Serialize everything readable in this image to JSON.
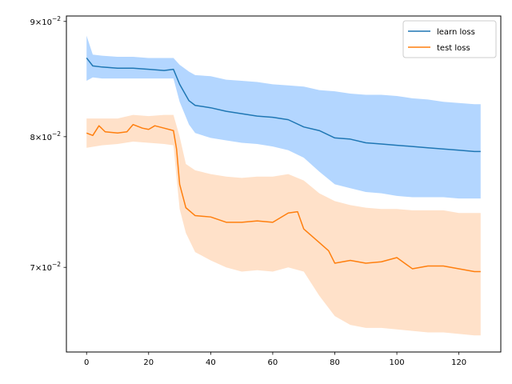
{
  "chart_data": {
    "type": "line",
    "title": "",
    "xlabel": "",
    "ylabel": "",
    "xlim": [
      -6.5,
      133.5
    ],
    "ylim": [
      0.0642,
      0.0905
    ],
    "yscale": "log",
    "grid": false,
    "legend_position": "top-right",
    "x_ticks": [
      0,
      20,
      40,
      60,
      80,
      100,
      120
    ],
    "x_tick_labels": [
      "0",
      "20",
      "40",
      "60",
      "80",
      "100",
      "120"
    ],
    "y_ticks": [
      {
        "value": 0.07,
        "mantissa": "7",
        "base": "10",
        "exponent": "−2"
      },
      {
        "value": 0.08,
        "mantissa": "8",
        "base": "10",
        "exponent": "−2"
      },
      {
        "value": 0.09,
        "mantissa": "9",
        "base": "10",
        "exponent": "−2"
      }
    ],
    "series": [
      {
        "name": "learn loss",
        "color": "#1f77b4",
        "band_color": "#a6cfff",
        "points": [
          [
            0,
            0.0867
          ],
          [
            2,
            0.086
          ],
          [
            5,
            0.0859
          ],
          [
            10,
            0.0858
          ],
          [
            15,
            0.0858
          ],
          [
            20,
            0.0857
          ],
          [
            25,
            0.0856
          ],
          [
            28,
            0.0857
          ],
          [
            30,
            0.0844
          ],
          [
            33,
            0.083
          ],
          [
            35,
            0.0826
          ],
          [
            40,
            0.0824
          ],
          [
            45,
            0.0821
          ],
          [
            50,
            0.0819
          ],
          [
            55,
            0.0817
          ],
          [
            60,
            0.0816
          ],
          [
            65,
            0.0814
          ],
          [
            70,
            0.0808
          ],
          [
            75,
            0.0805
          ],
          [
            80,
            0.0799
          ],
          [
            85,
            0.0798
          ],
          [
            90,
            0.0795
          ],
          [
            95,
            0.0794
          ],
          [
            100,
            0.0793
          ],
          [
            105,
            0.0792
          ],
          [
            110,
            0.0791
          ],
          [
            115,
            0.079
          ],
          [
            120,
            0.0789
          ],
          [
            125,
            0.0788
          ],
          [
            127,
            0.0788
          ]
        ],
        "upper": [
          [
            0,
            0.0887
          ],
          [
            2,
            0.087
          ],
          [
            5,
            0.0869
          ],
          [
            10,
            0.0868
          ],
          [
            15,
            0.0868
          ],
          [
            20,
            0.0867
          ],
          [
            25,
            0.0867
          ],
          [
            28,
            0.0867
          ],
          [
            30,
            0.0861
          ],
          [
            33,
            0.0855
          ],
          [
            35,
            0.0852
          ],
          [
            40,
            0.0851
          ],
          [
            45,
            0.0848
          ],
          [
            50,
            0.0847
          ],
          [
            55,
            0.0846
          ],
          [
            60,
            0.0844
          ],
          [
            65,
            0.0843
          ],
          [
            70,
            0.0842
          ],
          [
            75,
            0.0839
          ],
          [
            80,
            0.0838
          ],
          [
            85,
            0.0836
          ],
          [
            90,
            0.0835
          ],
          [
            95,
            0.0835
          ],
          [
            100,
            0.0834
          ],
          [
            105,
            0.0832
          ],
          [
            110,
            0.0831
          ],
          [
            115,
            0.0829
          ],
          [
            120,
            0.0828
          ],
          [
            125,
            0.0827
          ],
          [
            127,
            0.0827
          ]
        ],
        "lower": [
          [
            0,
            0.0847
          ],
          [
            2,
            0.085
          ],
          [
            5,
            0.0849
          ],
          [
            10,
            0.0849
          ],
          [
            15,
            0.0849
          ],
          [
            20,
            0.0849
          ],
          [
            25,
            0.0849
          ],
          [
            28,
            0.0849
          ],
          [
            30,
            0.0829
          ],
          [
            33,
            0.081
          ],
          [
            35,
            0.0803
          ],
          [
            40,
            0.0799
          ],
          [
            45,
            0.0797
          ],
          [
            50,
            0.0795
          ],
          [
            55,
            0.0794
          ],
          [
            60,
            0.0792
          ],
          [
            65,
            0.0789
          ],
          [
            70,
            0.0783
          ],
          [
            75,
            0.0772
          ],
          [
            80,
            0.0762
          ],
          [
            85,
            0.0759
          ],
          [
            90,
            0.0756
          ],
          [
            95,
            0.0755
          ],
          [
            100,
            0.0753
          ],
          [
            105,
            0.0752
          ],
          [
            110,
            0.0752
          ],
          [
            115,
            0.0752
          ],
          [
            120,
            0.0751
          ],
          [
            125,
            0.0751
          ],
          [
            127,
            0.0751
          ]
        ]
      },
      {
        "name": "test loss",
        "color": "#ff7f0e",
        "band_color": "#ffdcbf",
        "points": [
          [
            0,
            0.0803
          ],
          [
            2,
            0.0801
          ],
          [
            4,
            0.0809
          ],
          [
            6,
            0.0804
          ],
          [
            10,
            0.0803
          ],
          [
            13,
            0.0804
          ],
          [
            15,
            0.081
          ],
          [
            18,
            0.0807
          ],
          [
            20,
            0.0806
          ],
          [
            22,
            0.0809
          ],
          [
            25,
            0.0807
          ],
          [
            28,
            0.0805
          ],
          [
            29,
            0.079
          ],
          [
            30,
            0.0762
          ],
          [
            32,
            0.0744
          ],
          [
            35,
            0.0738
          ],
          [
            40,
            0.0737
          ],
          [
            45,
            0.0733
          ],
          [
            50,
            0.0733
          ],
          [
            55,
            0.0734
          ],
          [
            60,
            0.0733
          ],
          [
            65,
            0.074
          ],
          [
            68,
            0.0741
          ],
          [
            70,
            0.0728
          ],
          [
            75,
            0.0718
          ],
          [
            78,
            0.0712
          ],
          [
            80,
            0.0703
          ],
          [
            85,
            0.0705
          ],
          [
            90,
            0.0703
          ],
          [
            95,
            0.0704
          ],
          [
            100,
            0.0707
          ],
          [
            105,
            0.0699
          ],
          [
            110,
            0.0701
          ],
          [
            115,
            0.0701
          ],
          [
            120,
            0.0699
          ],
          [
            125,
            0.0697
          ],
          [
            127,
            0.0697
          ]
        ],
        "upper": [
          [
            0,
            0.0815
          ],
          [
            5,
            0.0815
          ],
          [
            10,
            0.0815
          ],
          [
            15,
            0.0818
          ],
          [
            20,
            0.0817
          ],
          [
            25,
            0.0818
          ],
          [
            28,
            0.0818
          ],
          [
            30,
            0.08
          ],
          [
            32,
            0.0778
          ],
          [
            35,
            0.0773
          ],
          [
            40,
            0.077
          ],
          [
            45,
            0.0768
          ],
          [
            50,
            0.0767
          ],
          [
            55,
            0.0768
          ],
          [
            60,
            0.0768
          ],
          [
            65,
            0.077
          ],
          [
            70,
            0.0765
          ],
          [
            75,
            0.0755
          ],
          [
            80,
            0.0749
          ],
          [
            85,
            0.0746
          ],
          [
            90,
            0.0744
          ],
          [
            95,
            0.0743
          ],
          [
            100,
            0.0743
          ],
          [
            105,
            0.0742
          ],
          [
            110,
            0.0742
          ],
          [
            115,
            0.0742
          ],
          [
            120,
            0.074
          ],
          [
            125,
            0.074
          ],
          [
            127,
            0.074
          ]
        ],
        "lower": [
          [
            0,
            0.0791
          ],
          [
            5,
            0.0793
          ],
          [
            10,
            0.0794
          ],
          [
            15,
            0.0796
          ],
          [
            20,
            0.0795
          ],
          [
            25,
            0.0794
          ],
          [
            28,
            0.0793
          ],
          [
            30,
            0.0743
          ],
          [
            32,
            0.0725
          ],
          [
            35,
            0.0711
          ],
          [
            40,
            0.0705
          ],
          [
            45,
            0.07
          ],
          [
            50,
            0.0697
          ],
          [
            55,
            0.0698
          ],
          [
            60,
            0.0697
          ],
          [
            65,
            0.07
          ],
          [
            70,
            0.0697
          ],
          [
            75,
            0.068
          ],
          [
            80,
            0.0666
          ],
          [
            85,
            0.066
          ],
          [
            90,
            0.0658
          ],
          [
            95,
            0.0658
          ],
          [
            100,
            0.0657
          ],
          [
            105,
            0.0656
          ],
          [
            110,
            0.0655
          ],
          [
            115,
            0.0655
          ],
          [
            120,
            0.0654
          ],
          [
            125,
            0.0653
          ],
          [
            127,
            0.0653
          ]
        ]
      }
    ]
  }
}
